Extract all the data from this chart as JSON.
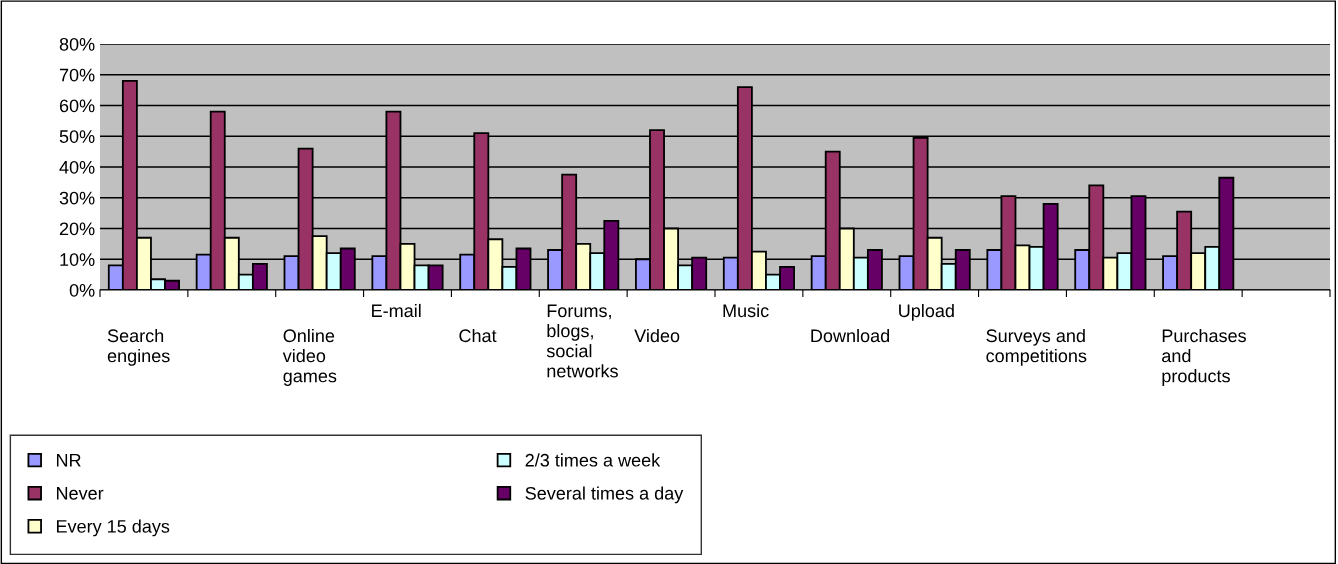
{
  "chart_data": {
    "type": "bar",
    "categories": [
      "Search\nengines",
      null,
      "Online\nvideo\ngames",
      "E-mail",
      "Chat",
      "Forums,\nblogs,\nsocial\nnetworks",
      "Video",
      "Music",
      "Download",
      "Upload",
      "Surveys and\ncompetitions",
      null,
      "Purchases\nand\nproducts",
      null
    ],
    "series": [
      {
        "name": "NR",
        "color": "#9999ff",
        "values": [
          8,
          11.5,
          11,
          11,
          11.5,
          13,
          10,
          10.5,
          11,
          11,
          13,
          13,
          11,
          null
        ]
      },
      {
        "name": "Never",
        "color": "#993366",
        "values": [
          68,
          58,
          46,
          58,
          51,
          37.5,
          52,
          66,
          45,
          49.5,
          30.5,
          34,
          25.5,
          null
        ]
      },
      {
        "name": "Every 15 days",
        "color": "#ffffcc",
        "values": [
          17,
          17,
          17.5,
          15,
          16.5,
          15,
          20,
          12.5,
          20,
          17,
          14.5,
          10.5,
          12,
          null
        ]
      },
      {
        "name": "2/3 times a week",
        "color": "#ccffff",
        "values": [
          3.5,
          5,
          12,
          8,
          7.5,
          12,
          8,
          5,
          10.5,
          8.5,
          14,
          12,
          14,
          null
        ]
      },
      {
        "name": "Several times a day",
        "color": "#660066",
        "values": [
          3,
          8.5,
          13.5,
          8,
          13.5,
          22.5,
          10.5,
          7.5,
          13,
          13,
          28,
          30.5,
          36.5,
          null
        ]
      }
    ],
    "ylim": [
      0,
      80
    ],
    "yticks": [
      {
        "value": 0,
        "label": "0%"
      },
      {
        "value": 10,
        "label": "10%"
      },
      {
        "value": 20,
        "label": "20%"
      },
      {
        "value": 30,
        "label": "30%"
      },
      {
        "value": 40,
        "label": "40%"
      },
      {
        "value": 50,
        "label": "50%"
      },
      {
        "value": 60,
        "label": "60%"
      },
      {
        "value": 70,
        "label": "70%"
      },
      {
        "value": 80,
        "label": "80%"
      }
    ],
    "grid": "y",
    "legend": "bottom left"
  }
}
